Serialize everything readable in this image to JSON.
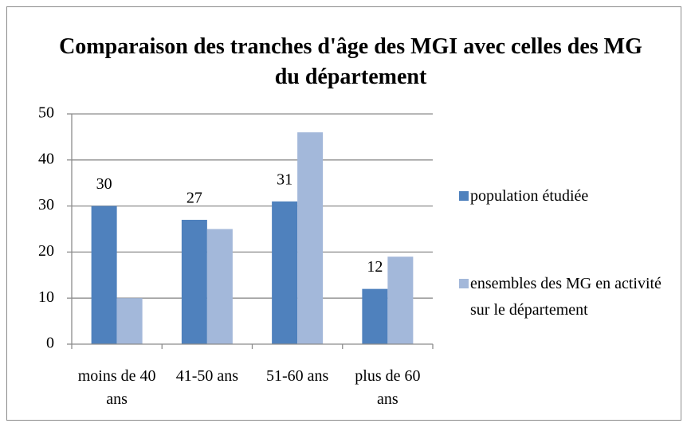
{
  "chart_data": {
    "type": "bar",
    "title": "Comparaison des tranches d'âge des MGI avec celles des MG du département",
    "categories": [
      "moins de 40 ans",
      "41-50 ans",
      "51-60 ans",
      "plus de 60 ans"
    ],
    "series": [
      {
        "name": "population étudiée",
        "color": "#4f81bd",
        "values": [
          30,
          27,
          31,
          12
        ],
        "data_labels": true
      },
      {
        "name": "ensembles des MG en activité sur le département",
        "color": "#a3b8da",
        "values": [
          10,
          25,
          46,
          19
        ],
        "data_labels": false
      }
    ],
    "ylim": [
      0,
      50
    ],
    "yticks": [
      0,
      10,
      20,
      30,
      40,
      50
    ],
    "grid": true,
    "legend": "right"
  }
}
